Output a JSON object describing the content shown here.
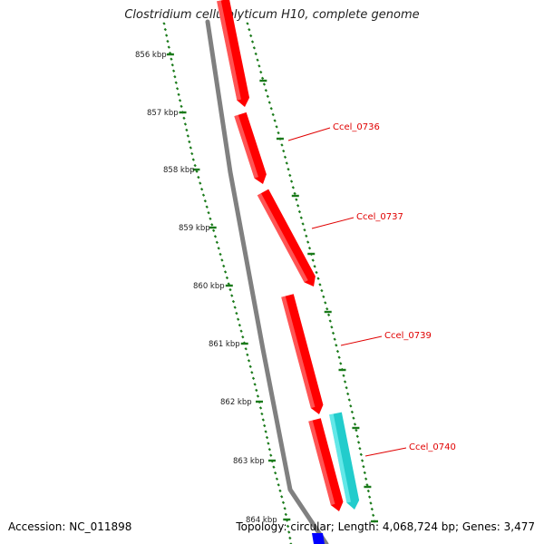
{
  "title": "Clostridium cellulolyticum H10, complete genome",
  "footer": {
    "accession": "Accession: NC_011898",
    "stats": "Topology: circular; Length: 4,068,724 bp; Genes: 3,477"
  },
  "colors": {
    "forward_gene": "#ff0000",
    "reverse_gene": "#22cccc",
    "backbone": "#808080",
    "ticks": "#1a7a1a",
    "label": "#e00000",
    "other_gene": "#0000ff"
  },
  "ruler": {
    "unit": "kbp",
    "ticks": [
      {
        "kbp": 856,
        "label": "856 kbp"
      },
      {
        "kbp": 857,
        "label": "857 kbp"
      },
      {
        "kbp": 858,
        "label": "858 kbp"
      },
      {
        "kbp": 859,
        "label": "859 kbp"
      },
      {
        "kbp": 860,
        "label": "860 kbp"
      },
      {
        "kbp": 861,
        "label": "861 kbp"
      },
      {
        "kbp": 862,
        "label": "862 kbp"
      },
      {
        "kbp": 863,
        "label": "863 kbp"
      },
      {
        "kbp": 864,
        "label": "864 kbp"
      }
    ]
  },
  "genes": [
    {
      "name": "",
      "strand": "forward",
      "color": "forward_gene",
      "labeled": false
    },
    {
      "name": "Ccel_0736",
      "strand": "forward",
      "color": "forward_gene",
      "labeled": true
    },
    {
      "name": "Ccel_0737",
      "strand": "forward",
      "color": "forward_gene",
      "labeled": true
    },
    {
      "name": "Ccel_0739",
      "strand": "forward",
      "color": "forward_gene",
      "labeled": true
    },
    {
      "name": "Ccel_0740",
      "strand": "forward",
      "color": "forward_gene",
      "labeled": true
    },
    {
      "name": "",
      "strand": "reverse",
      "color": "reverse_gene",
      "labeled": false
    },
    {
      "name": "",
      "strand": "forward",
      "color": "other_gene",
      "labeled": false
    }
  ]
}
